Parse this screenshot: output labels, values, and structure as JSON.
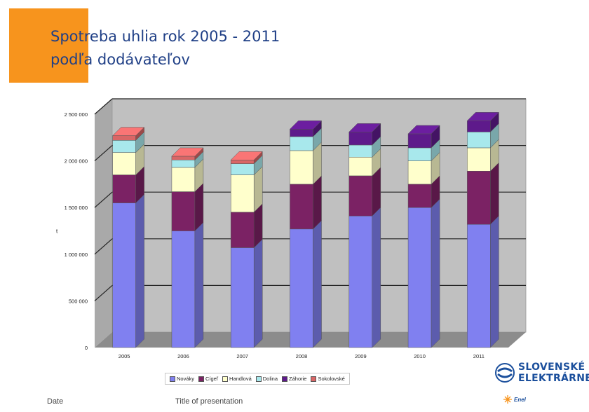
{
  "header": {
    "title_line1": "Spotreba uhlia rok 2005 - 2011",
    "title_line2": "podľa dodávateľov"
  },
  "footer": {
    "date": "Date",
    "title": "Title of presentation"
  },
  "brand": {
    "name_line1": "SLOVENSKÉ",
    "name_line2": "ELEKTRÁRNE",
    "parent": "Enel"
  },
  "colors": {
    "accent_box": "#f7941d",
    "title": "#1f3f86",
    "wall": "#c0c0c0",
    "brand": "#1b4f9c"
  },
  "chart_data": {
    "type": "bar",
    "stacked": true,
    "three_d": true,
    "title": "",
    "xlabel": "",
    "ylabel": "t",
    "ylim": [
      0,
      2500000
    ],
    "yticks": [
      0,
      500000,
      1000000,
      1500000,
      2000000,
      2500000
    ],
    "ytick_labels": [
      "0",
      "500 000",
      "1 000 000",
      "1 500 000",
      "2 000 000",
      "2 500 000"
    ],
    "grid": true,
    "legend_position": "bottom",
    "categories": [
      "2005",
      "2006",
      "2007",
      "2008",
      "2009",
      "2010",
      "2011"
    ],
    "series": [
      {
        "name": "Nováky",
        "color": "#8080f0",
        "values": [
          1550000,
          1250000,
          1070000,
          1270000,
          1410000,
          1500000,
          1320000
        ]
      },
      {
        "name": "Cígeľ",
        "color": "#7b2264",
        "values": [
          300000,
          420000,
          380000,
          480000,
          430000,
          250000,
          570000
        ]
      },
      {
        "name": "Handlová",
        "color": "#ffffcc",
        "values": [
          240000,
          260000,
          400000,
          360000,
          200000,
          250000,
          250000
        ]
      },
      {
        "name": "Dolina",
        "color": "#a8e8ec",
        "values": [
          130000,
          80000,
          120000,
          150000,
          130000,
          140000,
          170000
        ]
      },
      {
        "name": "Záhorie",
        "color": "#5e1a8b",
        "values": [
          0,
          0,
          0,
          80000,
          140000,
          150000,
          120000
        ]
      },
      {
        "name": "Sokolovské",
        "color": "#d96666",
        "values": [
          50000,
          40000,
          40000,
          0,
          0,
          0,
          0
        ]
      }
    ]
  }
}
